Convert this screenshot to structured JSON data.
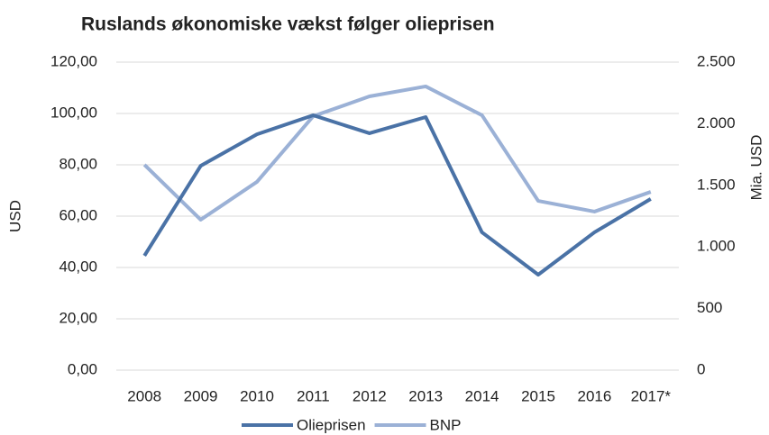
{
  "chart_data": {
    "type": "line",
    "title": "Ruslands økonomiske vækst følger olieprisen",
    "y_label": "USD",
    "y2_label": "Mia. USD",
    "categories": [
      "2008",
      "2009",
      "2010",
      "2011",
      "2012",
      "2013",
      "2014",
      "2015",
      "2016",
      "2017*"
    ],
    "series": [
      {
        "name": "Olieprisen",
        "color": "#4a72a6",
        "values": [
          44.6,
          79.6,
          91.9,
          99.3,
          92.3,
          98.6,
          53.7,
          37.2,
          53.7,
          66.7
        ]
      },
      {
        "name": "BNP",
        "color": "#9bb1d6",
        "axis": "y2",
        "values": [
          1667,
          1221,
          1528,
          2061,
          2222,
          2303,
          2069,
          1374,
          1287,
          1447
        ]
      }
    ],
    "ylim": [
      0,
      120
    ],
    "yticks": [
      {
        "value": 0,
        "label": "0,00"
      },
      {
        "value": 20,
        "label": "20,00"
      },
      {
        "value": 40,
        "label": "40,00"
      },
      {
        "value": 60,
        "label": "60,00"
      },
      {
        "value": 80,
        "label": "80,00"
      },
      {
        "value": 100,
        "label": "100,00"
      },
      {
        "value": 120,
        "label": "120,00"
      }
    ],
    "y2lim": [
      0,
      2500
    ],
    "y2ticks": [
      0,
      500,
      {
        "value": 1000,
        "label": "1.000"
      },
      {
        "value": 1500,
        "label": "1.500"
      },
      {
        "value": 2000,
        "label": "2.000"
      },
      {
        "value": 2500,
        "label": "2.500"
      }
    ],
    "grid": true,
    "legend": "bottom"
  }
}
